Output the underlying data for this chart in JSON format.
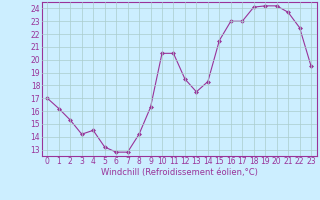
{
  "x": [
    0,
    1,
    2,
    3,
    4,
    5,
    6,
    7,
    8,
    9,
    10,
    11,
    12,
    13,
    14,
    15,
    16,
    17,
    18,
    19,
    20,
    21,
    22,
    23
  ],
  "y": [
    17.0,
    16.2,
    15.3,
    14.2,
    14.5,
    13.2,
    12.8,
    12.8,
    14.2,
    16.3,
    20.5,
    20.5,
    18.5,
    17.5,
    18.3,
    21.5,
    23.0,
    23.0,
    24.1,
    24.2,
    24.2,
    23.7,
    22.5,
    19.5
  ],
  "xlim": [
    -0.5,
    23.5
  ],
  "ylim": [
    12.5,
    24.5
  ],
  "yticks": [
    13,
    14,
    15,
    16,
    17,
    18,
    19,
    20,
    21,
    22,
    23,
    24
  ],
  "xticks": [
    0,
    1,
    2,
    3,
    4,
    5,
    6,
    7,
    8,
    9,
    10,
    11,
    12,
    13,
    14,
    15,
    16,
    17,
    18,
    19,
    20,
    21,
    22,
    23
  ],
  "xlabel": "Windchill (Refroidissement éolien,°C)",
  "line_color": "#993399",
  "marker": "D",
  "marker_size": 2.0,
  "bg_color": "#cceeff",
  "grid_color": "#aacccc",
  "tick_color": "#993399",
  "label_color": "#993399",
  "tick_fontsize": 5.5,
  "xlabel_fontsize": 6.0
}
